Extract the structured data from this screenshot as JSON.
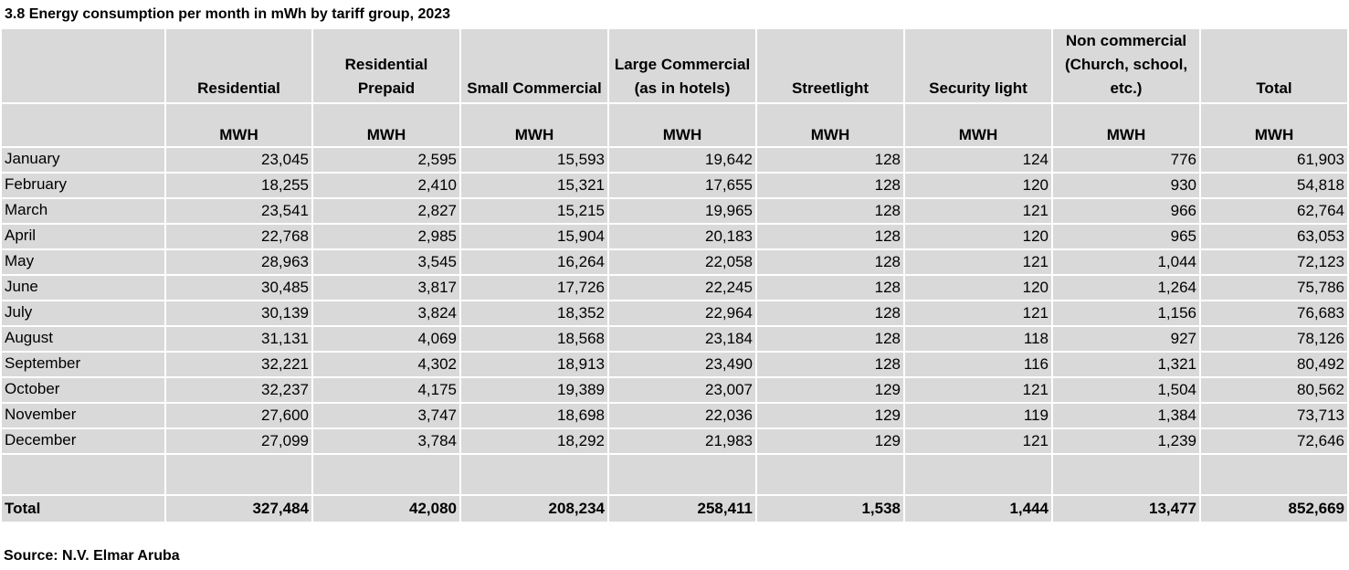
{
  "title": "3.8  Energy consumption per month in mWh by tariff group, 2023",
  "columns": [
    "Residential",
    "Residential Prepaid",
    "Small Commercial",
    "Large Commercial (as in hotels)",
    "Streetlight",
    "Security light",
    "Non commercial (Church, school, etc.)",
    "Total"
  ],
  "unit": "MWH",
  "rows": [
    {
      "month": "January",
      "values": [
        "23,045",
        "2,595",
        "15,593",
        "19,642",
        "128",
        "124",
        "776",
        "61,903"
      ]
    },
    {
      "month": "February",
      "values": [
        "18,255",
        "2,410",
        "15,321",
        "17,655",
        "128",
        "120",
        "930",
        "54,818"
      ]
    },
    {
      "month": "March",
      "values": [
        "23,541",
        "2,827",
        "15,215",
        "19,965",
        "128",
        "121",
        "966",
        "62,764"
      ]
    },
    {
      "month": "April",
      "values": [
        "22,768",
        "2,985",
        "15,904",
        "20,183",
        "128",
        "120",
        "965",
        "63,053"
      ]
    },
    {
      "month": "May",
      "values": [
        "28,963",
        "3,545",
        "16,264",
        "22,058",
        "128",
        "121",
        "1,044",
        "72,123"
      ]
    },
    {
      "month": "June",
      "values": [
        "30,485",
        "3,817",
        "17,726",
        "22,245",
        "128",
        "120",
        "1,264",
        "75,786"
      ]
    },
    {
      "month": "July",
      "values": [
        "30,139",
        "3,824",
        "18,352",
        "22,964",
        "128",
        "121",
        "1,156",
        "76,683"
      ]
    },
    {
      "month": "August",
      "values": [
        "31,131",
        "4,069",
        "18,568",
        "23,184",
        "128",
        "118",
        "927",
        "78,126"
      ]
    },
    {
      "month": "September",
      "values": [
        "32,221",
        "4,302",
        "18,913",
        "23,490",
        "128",
        "116",
        "1,321",
        "80,492"
      ]
    },
    {
      "month": "October",
      "values": [
        "32,237",
        "4,175",
        "19,389",
        "23,007",
        "129",
        "121",
        "1,504",
        "80,562"
      ]
    },
    {
      "month": "November",
      "values": [
        "27,600",
        "3,747",
        "18,698",
        "22,036",
        "129",
        "119",
        "1,384",
        "73,713"
      ]
    },
    {
      "month": "December",
      "values": [
        "27,099",
        "3,784",
        "18,292",
        "21,983",
        "129",
        "121",
        "1,239",
        "72,646"
      ]
    }
  ],
  "total": {
    "label": "Total",
    "values": [
      "327,484",
      "42,080",
      "208,234",
      "258,411",
      "1,538",
      "1,444",
      "13,477",
      "852,669"
    ]
  },
  "source": "Source: N.V. Elmar Aruba"
}
